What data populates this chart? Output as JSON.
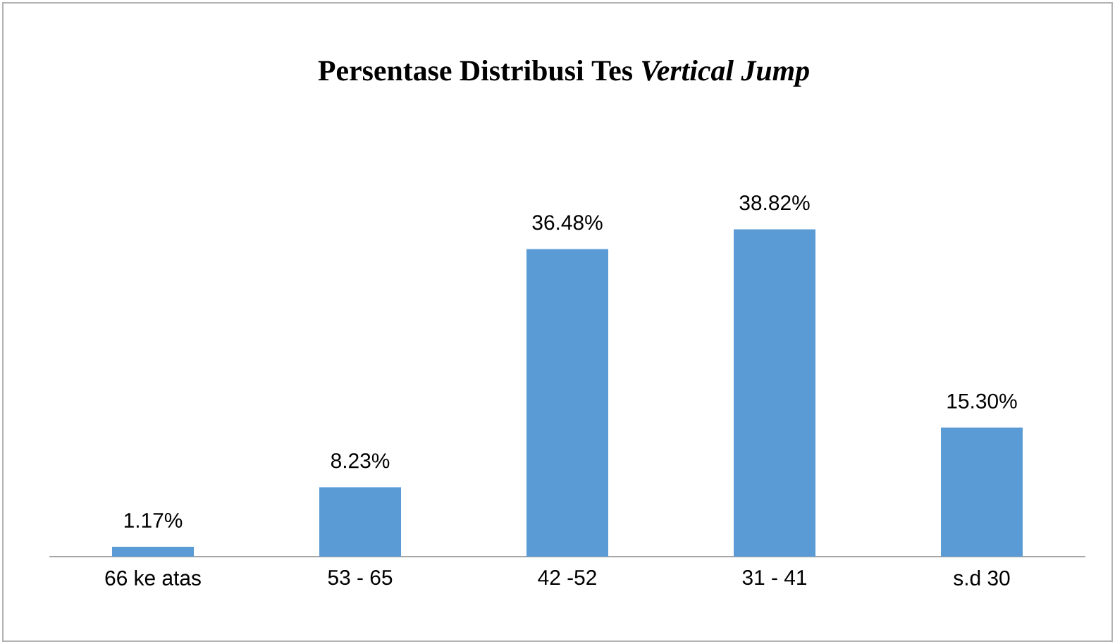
{
  "chart_data": {
    "type": "bar",
    "title": "Persentase Distribusi Tes *Vertical Jump*",
    "categories": [
      "66  ke atas",
      "53 - 65",
      "42 -52",
      "31 - 41",
      "s.d 30"
    ],
    "values": [
      1.17,
      8.23,
      36.48,
      38.82,
      15.3
    ],
    "value_labels": [
      "1.17%",
      "8.23%",
      "36.48%",
      "38.82%",
      "15.30%"
    ],
    "color": "#5b9bd5"
  }
}
